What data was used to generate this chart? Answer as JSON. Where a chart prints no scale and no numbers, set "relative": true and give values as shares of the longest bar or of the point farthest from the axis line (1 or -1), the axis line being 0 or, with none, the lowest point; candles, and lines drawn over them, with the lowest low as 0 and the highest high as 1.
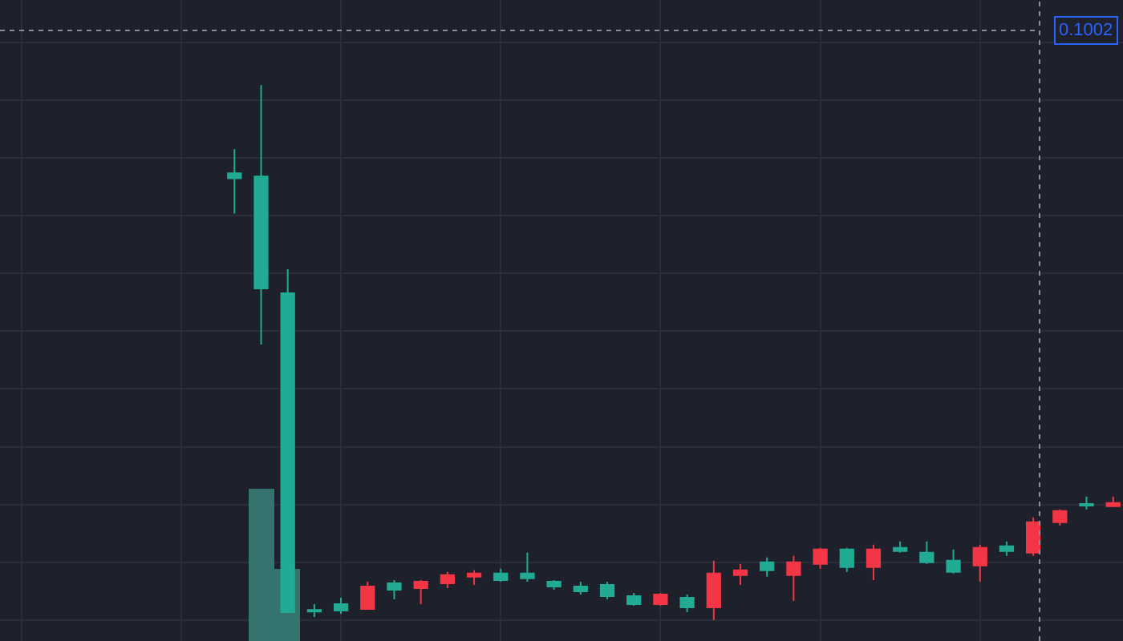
{
  "chart_data": [
    {
      "type": "candlestick",
      "relative": true,
      "categories": [
        null,
        null,
        null,
        null,
        null,
        null,
        null,
        null,
        null,
        null,
        null,
        null,
        null,
        null,
        null,
        null,
        null,
        null,
        null,
        null,
        null,
        null,
        null,
        null,
        null,
        null,
        null,
        null,
        null,
        null,
        null,
        null,
        null,
        null
      ],
      "ohlc": [
        [
          0.826,
          0.88,
          0.76,
          0.835
        ],
        [
          0.62,
          1.0,
          0.515,
          0.829
        ],
        [
          0.015,
          0.656,
          0.015,
          0.611
        ],
        [
          0.016,
          0.03,
          0.006,
          0.019
        ],
        [
          0.018,
          0.042,
          0.012,
          0.03
        ],
        [
          0.063,
          0.072,
          0.021,
          0.021
        ],
        [
          0.057,
          0.075,
          0.039,
          0.069
        ],
        [
          0.072,
          0.075,
          0.03,
          0.06
        ],
        [
          0.084,
          0.09,
          0.06,
          0.069
        ],
        [
          0.087,
          0.093,
          0.066,
          0.081
        ],
        [
          0.075,
          0.096,
          0.072,
          0.087
        ],
        [
          0.078,
          0.126,
          0.072,
          0.087
        ],
        [
          0.063,
          0.075,
          0.057,
          0.072
        ],
        [
          0.054,
          0.072,
          0.048,
          0.063
        ],
        [
          0.045,
          0.072,
          0.039,
          0.066
        ],
        [
          0.03,
          0.051,
          0.027,
          0.045
        ],
        [
          0.048,
          0.051,
          0.027,
          0.03
        ],
        [
          0.024,
          0.048,
          0.015,
          0.042
        ],
        [
          0.087,
          0.111,
          0.0,
          0.024
        ],
        [
          0.093,
          0.105,
          0.066,
          0.084
        ],
        [
          0.093,
          0.117,
          0.081,
          0.108
        ],
        [
          0.108,
          0.12,
          0.036,
          0.084
        ],
        [
          0.132,
          0.135,
          0.096,
          0.105
        ],
        [
          0.099,
          0.135,
          0.09,
          0.132
        ],
        [
          0.132,
          0.141,
          0.075,
          0.099
        ],
        [
          0.129,
          0.147,
          0.126,
          0.135
        ],
        [
          0.108,
          0.147,
          0.105,
          0.126
        ],
        [
          0.09,
          0.132,
          0.087,
          0.111
        ],
        [
          0.135,
          0.141,
          0.072,
          0.102
        ],
        [
          0.129,
          0.147,
          0.12,
          0.138
        ],
        [
          0.183,
          0.192,
          0.12,
          0.126
        ],
        [
          0.204,
          0.207,
          0.177,
          0.183
        ],
        [
          0.214,
          0.231,
          0.207,
          0.217
        ],
        [
          0.219,
          0.231,
          0.213,
          0.213
        ]
      ],
      "colors": [
        "#22ab94",
        "#22ab94",
        "#22ab94",
        "#22ab94",
        "#22ab94",
        "#f23645",
        "#22ab94",
        "#f23645",
        "#f23645",
        "#f23645",
        "#22ab94",
        "#22ab94",
        "#22ab94",
        "#22ab94",
        "#22ab94",
        "#22ab94",
        "#f23645",
        "#22ab94",
        "#f23645",
        "#f23645",
        "#22ab94",
        "#f23645",
        "#f23645",
        "#22ab94",
        "#f23645",
        "#22ab94",
        "#22ab94",
        "#22ab94",
        "#f23645",
        "#22ab94",
        "#f23645",
        "#f23645",
        "#22ab94",
        "#f23645"
      ],
      "annotations": [
        "0.1002"
      ],
      "grid": true
    },
    {
      "type": "bar",
      "relative": true,
      "categories": [
        null,
        null,
        null,
        null,
        null,
        null,
        null,
        null,
        null,
        null,
        null,
        null,
        null,
        null,
        null,
        null,
        null,
        null,
        null,
        null,
        null,
        null,
        null,
        null,
        null,
        null,
        null,
        null,
        null,
        null,
        null,
        null,
        null,
        null
      ],
      "values": [
        null,
        1.0,
        0.47,
        null,
        null,
        null,
        null,
        null,
        null,
        null,
        null,
        null,
        null,
        null,
        null,
        null,
        null,
        null,
        null,
        null,
        null,
        null,
        null,
        null,
        null,
        null,
        null,
        null,
        null,
        null,
        null,
        null,
        null,
        null
      ],
      "color": "#35736e",
      "grid": true
    }
  ]
}
